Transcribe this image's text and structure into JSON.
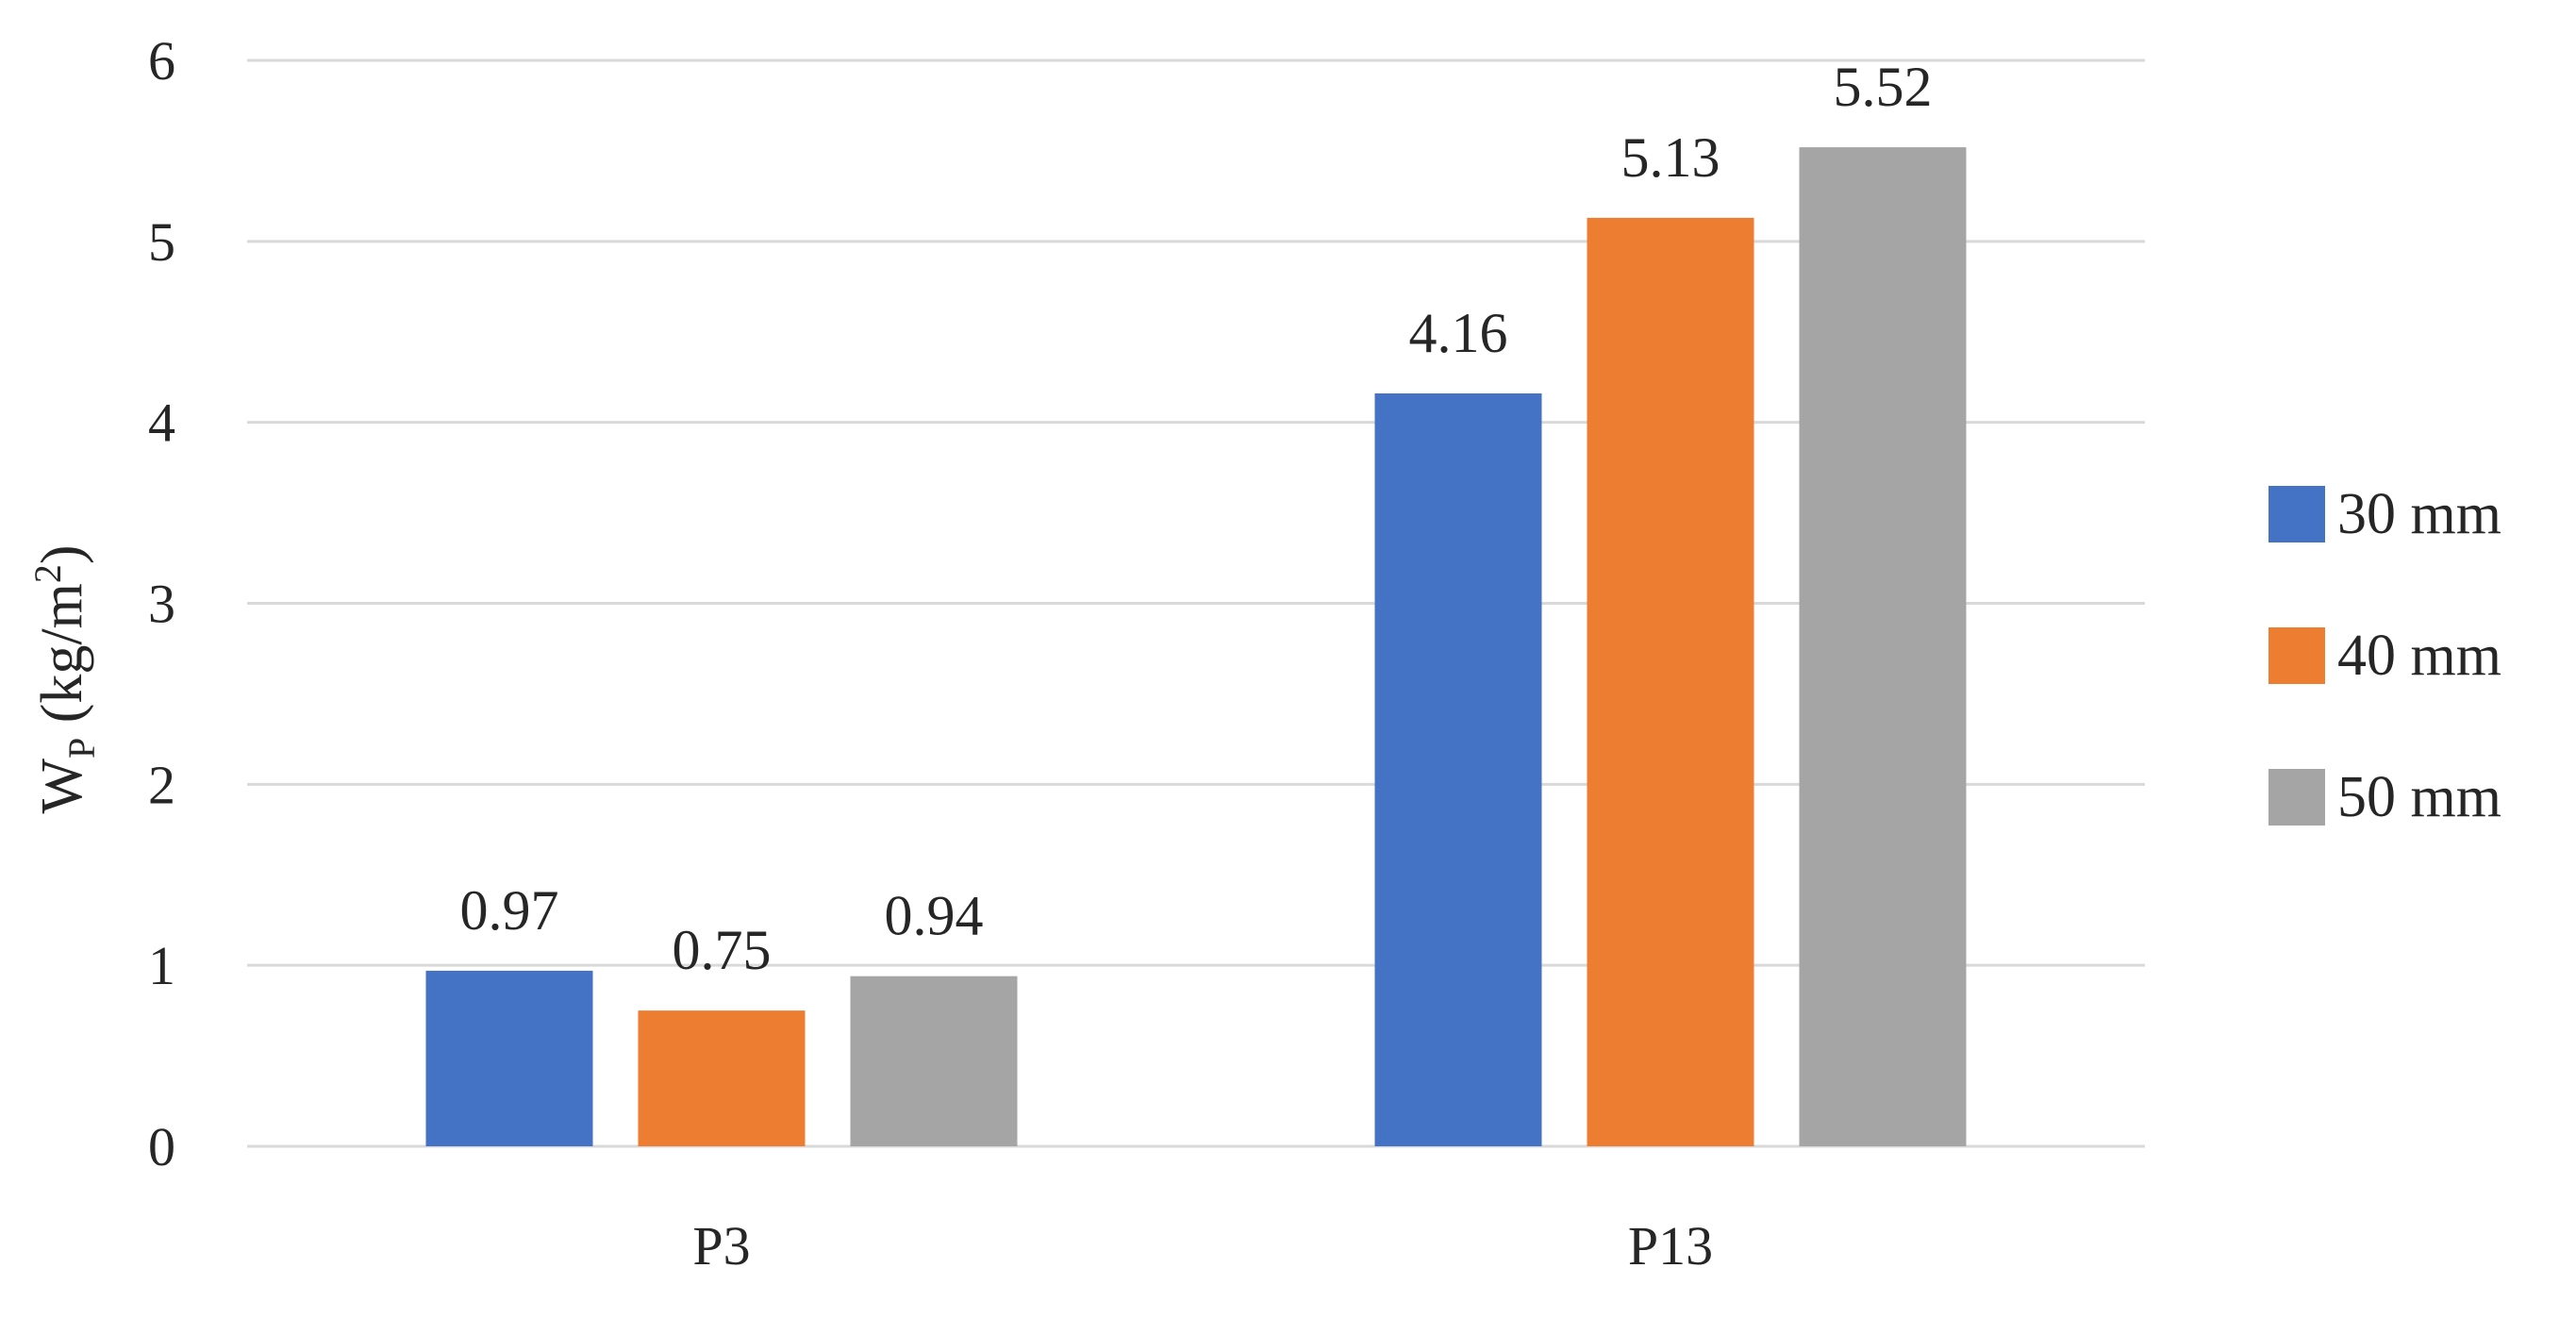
{
  "chart_data": {
    "type": "bar",
    "title": "",
    "xlabel": "",
    "ylabel": {
      "main": "W",
      "subscript": "P",
      "units_open": " (kg/m",
      "superscript": "2",
      "units_close": ")"
    },
    "categories": [
      "P3",
      "P13"
    ],
    "series": [
      {
        "name": "30 mm",
        "color": "#4472c4",
        "values": [
          0.97,
          4.16
        ],
        "labels": [
          "0.97",
          "4.16"
        ]
      },
      {
        "name": "40 mm",
        "color": "#ed7d31",
        "values": [
          0.75,
          5.13
        ],
        "labels": [
          "0.75",
          "5.13"
        ]
      },
      {
        "name": "50 mm",
        "color": "#a5a5a5",
        "values": [
          0.94,
          5.52
        ],
        "labels": [
          "0.94",
          "5.52"
        ]
      }
    ],
    "ylim": [
      0,
      6
    ],
    "yticks": [
      0,
      1,
      2,
      3,
      4,
      5,
      6
    ],
    "ytick_labels": [
      "0",
      "1",
      "2",
      "3",
      "4",
      "5",
      "6"
    ],
    "grid": true,
    "legend_position": "right"
  }
}
